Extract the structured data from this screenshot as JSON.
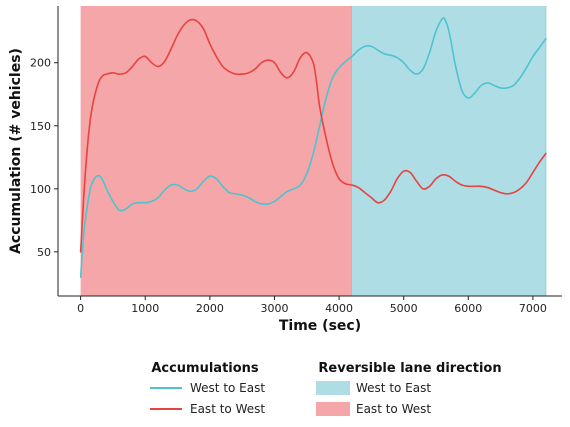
{
  "chart_data": {
    "type": "line",
    "xlabel": "Time (sec)",
    "ylabel": "Accumulation (# vehicles)",
    "xlim": [
      -350,
      7450
    ],
    "ylim": [
      15,
      245
    ],
    "xticks": [
      0,
      1000,
      2000,
      3000,
      4000,
      5000,
      6000,
      7000
    ],
    "yticks": [
      50,
      100,
      150,
      200
    ],
    "grid": false,
    "regions": [
      {
        "name": "East to West",
        "x0": 0,
        "x1": 4200,
        "color": "#f4a6a8"
      },
      {
        "name": "West to East",
        "x0": 4200,
        "x1": 7200,
        "color": "#aedde6"
      }
    ],
    "series": [
      {
        "name": "West to East",
        "color": "#4fc3cf",
        "x": [
          0,
          50,
          100,
          150,
          200,
          250,
          300,
          350,
          400,
          500,
          600,
          700,
          800,
          900,
          1000,
          1100,
          1200,
          1300,
          1400,
          1500,
          1600,
          1700,
          1800,
          1900,
          2000,
          2100,
          2200,
          2300,
          2400,
          2500,
          2600,
          2700,
          2800,
          2900,
          3000,
          3100,
          3200,
          3300,
          3400,
          3500,
          3600,
          3700,
          3800,
          3900,
          4000,
          4100,
          4200,
          4300,
          4400,
          4500,
          4600,
          4700,
          4800,
          4900,
          5000,
          5100,
          5200,
          5300,
          5400,
          5500,
          5600,
          5650,
          5700,
          5750,
          5800,
          5900,
          6000,
          6100,
          6200,
          6300,
          6400,
          6500,
          6600,
          6700,
          6800,
          6900,
          7000,
          7100,
          7200
        ],
        "values": [
          30,
          65,
          85,
          100,
          107,
          110,
          110,
          106,
          100,
          90,
          83,
          84,
          88,
          89,
          89,
          90,
          93,
          99,
          103,
          103,
          100,
          98,
          100,
          106,
          110,
          108,
          102,
          97,
          96,
          95,
          93,
          90,
          88,
          88,
          90,
          94,
          98,
          100,
          103,
          112,
          128,
          150,
          172,
          188,
          196,
          201,
          205,
          210,
          213,
          213,
          210,
          207,
          206,
          204,
          200,
          194,
          191,
          195,
          208,
          225,
          235,
          233,
          225,
          212,
          198,
          178,
          172,
          176,
          182,
          184,
          182,
          180,
          180,
          182,
          188,
          196,
          205,
          212,
          219
        ]
      },
      {
        "name": "East to West",
        "color": "#e8433f",
        "x": [
          0,
          50,
          100,
          150,
          200,
          250,
          300,
          350,
          400,
          500,
          600,
          700,
          800,
          900,
          1000,
          1100,
          1200,
          1300,
          1400,
          1500,
          1600,
          1700,
          1800,
          1900,
          2000,
          2100,
          2200,
          2300,
          2400,
          2500,
          2600,
          2700,
          2800,
          2900,
          3000,
          3100,
          3200,
          3300,
          3400,
          3500,
          3600,
          3650,
          3700,
          3800,
          3900,
          4000,
          4100,
          4200,
          4300,
          4400,
          4500,
          4600,
          4700,
          4800,
          4900,
          5000,
          5100,
          5200,
          5300,
          5400,
          5500,
          5600,
          5700,
          5800,
          5900,
          6000,
          6100,
          6200,
          6300,
          6400,
          6500,
          6600,
          6700,
          6800,
          6900,
          7000,
          7100,
          7200
        ],
        "values": [
          50,
          95,
          130,
          155,
          170,
          180,
          187,
          190,
          191,
          192,
          191,
          192,
          197,
          203,
          205,
          200,
          197,
          201,
          211,
          222,
          230,
          234,
          233,
          227,
          215,
          205,
          197,
          193,
          191,
          191,
          192,
          195,
          200,
          202,
          200,
          192,
          188,
          193,
          204,
          208,
          200,
          185,
          165,
          140,
          120,
          108,
          104,
          103,
          101,
          97,
          93,
          89,
          91,
          98,
          108,
          114,
          113,
          106,
          100,
          102,
          108,
          111,
          110,
          106,
          103,
          102,
          102,
          102,
          101,
          99,
          97,
          96,
          97,
          100,
          105,
          113,
          121,
          128
        ]
      }
    ],
    "legends": [
      {
        "title": "Accumulations",
        "entries": [
          {
            "label": "West to East",
            "kind": "line",
            "color": "#4fc3cf"
          },
          {
            "label": "East to West",
            "kind": "line",
            "color": "#e8433f"
          }
        ]
      },
      {
        "title": "Reversible lane direction",
        "entries": [
          {
            "label": "West to East",
            "kind": "box",
            "color": "#aedde6"
          },
          {
            "label": "East to West",
            "kind": "box",
            "color": "#f4a6a8"
          }
        ]
      }
    ]
  }
}
